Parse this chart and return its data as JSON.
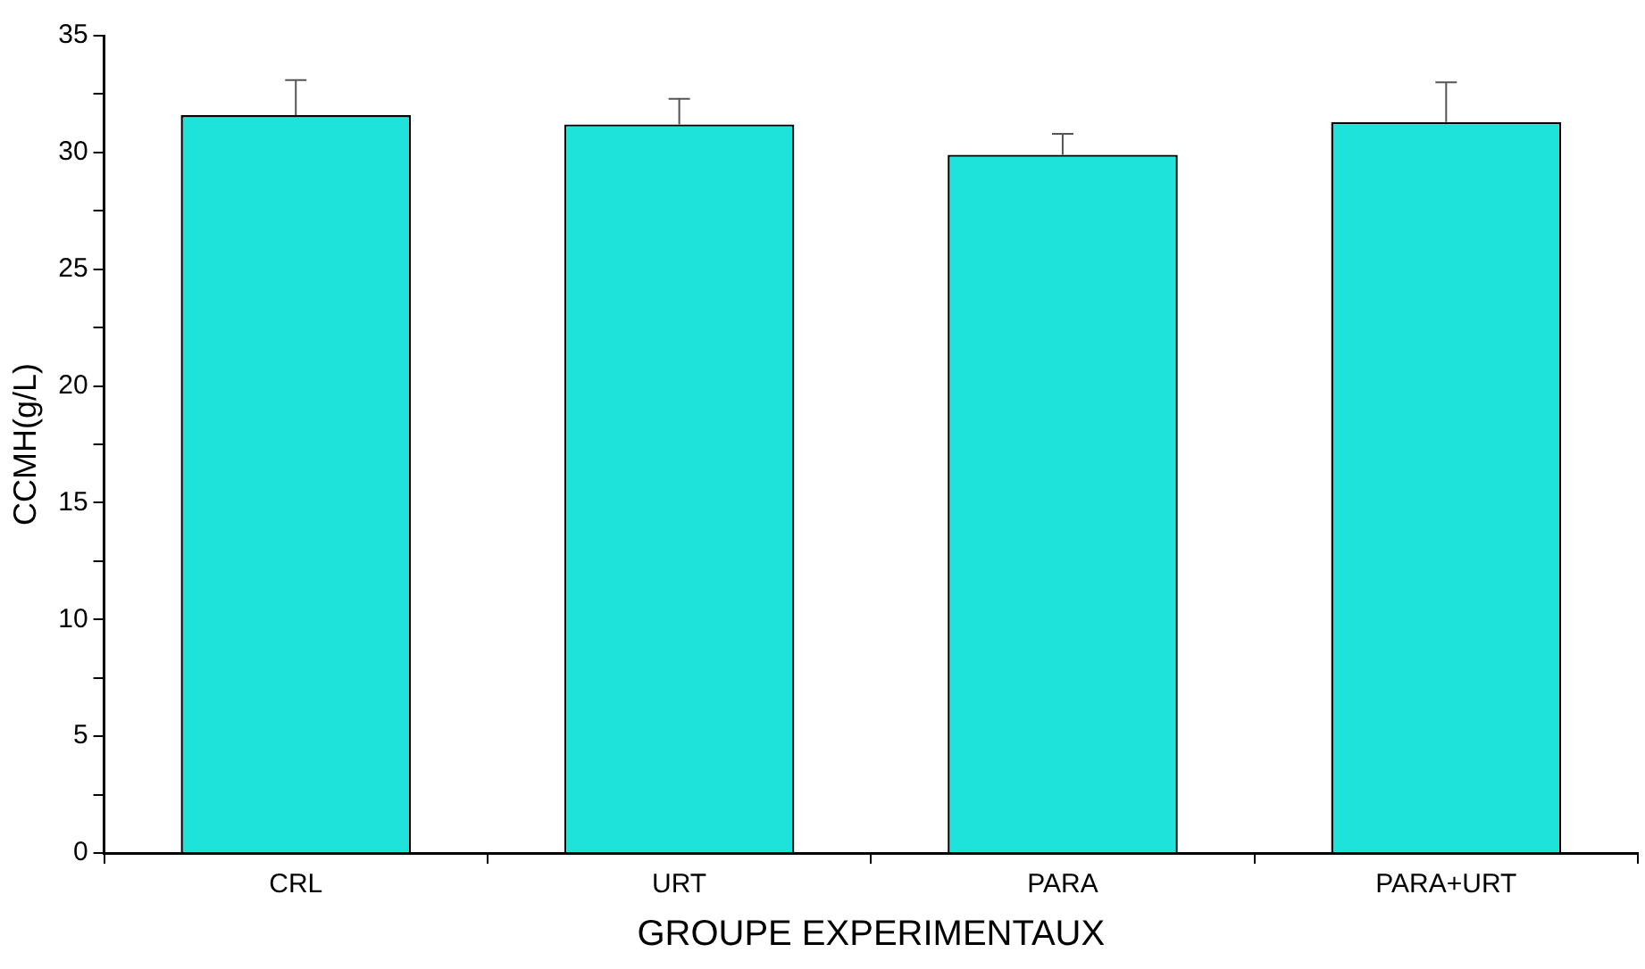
{
  "chart_data": {
    "type": "bar",
    "xlabel": "GROUPE EXPERIMENTAUX",
    "ylabel": "CCMH(g/L)",
    "categories": [
      "CRL",
      "URT",
      "PARA",
      "PARA+URT"
    ],
    "values": [
      31.6,
      31.2,
      29.9,
      31.3
    ],
    "errors": [
      [
        31.6,
        33.1
      ],
      [
        31.2,
        32.3
      ],
      [
        29.9,
        30.8
      ],
      [
        31.3,
        33.0
      ]
    ],
    "color": "#1ee3da",
    "ylim": [
      0,
      35
    ],
    "yticks": [
      0,
      {
        "value": 2.5,
        "label": null
      },
      5,
      {
        "value": 7.5,
        "label": null
      },
      10,
      {
        "value": 12.5,
        "label": null
      },
      15,
      {
        "value": 17.5,
        "label": null
      },
      20,
      {
        "value": 22.5,
        "label": null
      },
      25,
      {
        "value": 27.5,
        "label": null
      },
      30,
      {
        "value": 32.5,
        "label": null
      },
      35
    ],
    "grid": false,
    "legend": false
  }
}
